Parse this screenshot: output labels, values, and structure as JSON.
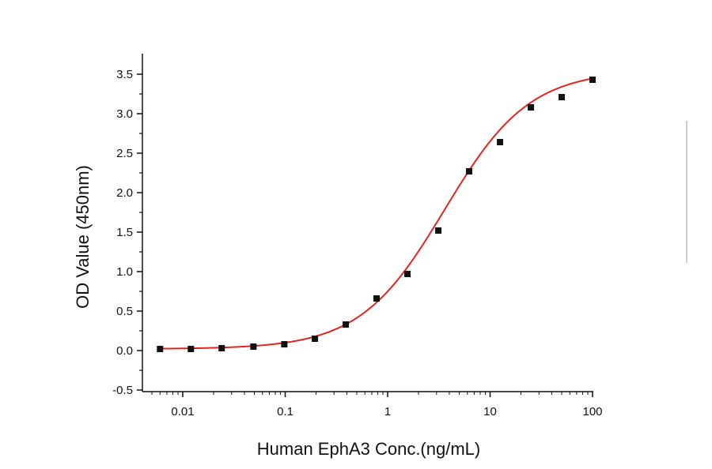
{
  "chart_data": {
    "type": "scatter",
    "title": "",
    "xlabel": "Human EphA3 Conc.(ng/mL)",
    "ylabel": "OD Value (450nm)",
    "xscale": "log",
    "xlim": [
      0.005,
      110
    ],
    "ylim": [
      -0.5,
      3.75
    ],
    "x_ticks": [
      0.01,
      0.1,
      1,
      10,
      100
    ],
    "x_tick_labels": [
      "0.01",
      "0.1",
      "1",
      "10",
      "100"
    ],
    "y_ticks": [
      -0.5,
      0.0,
      0.5,
      1.0,
      1.5,
      2.0,
      2.5,
      3.0,
      3.5
    ],
    "y_tick_labels": [
      "-0.5",
      "0.0",
      "0.5",
      "1.0",
      "1.5",
      "2.0",
      "2.5",
      "3.0",
      "3.5"
    ],
    "grid": false,
    "legend": "none",
    "series": [
      {
        "marker": "square",
        "color": "#111111",
        "x": [
          0.006,
          0.012,
          0.024,
          0.049,
          0.098,
          0.195,
          0.39,
          0.78,
          1.56,
          3.125,
          6.25,
          12.5,
          25,
          50,
          100
        ],
        "y": [
          0.02,
          0.02,
          0.03,
          0.05,
          0.08,
          0.15,
          0.33,
          0.66,
          0.97,
          1.52,
          2.27,
          2.64,
          3.08,
          3.21,
          3.43
        ]
      }
    ],
    "fit_curve": {
      "type": "4PL",
      "color": "#e52421",
      "bottom": 0.02,
      "top": 3.55,
      "ec50": 3.6,
      "hill": 1.05
    }
  }
}
